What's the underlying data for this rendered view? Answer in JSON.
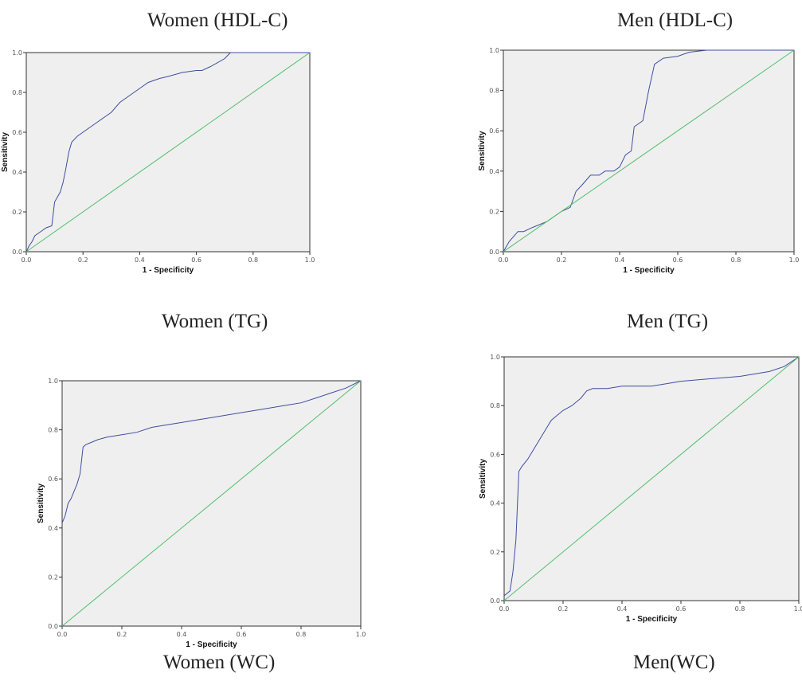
{
  "captions": {
    "c1": "Women (HDL-C)",
    "c2": "Men (HDL-C)",
    "c3": "Women (TG)",
    "c4": "Men (TG)",
    "c5": "Women (WC)",
    "c6": "Men(WC)"
  },
  "chart_data": [
    {
      "type": "line",
      "xlabel": "1 - Specificity",
      "ylabel": "Sensitivity",
      "xlim": [
        0,
        1
      ],
      "ylim": [
        0,
        1
      ],
      "ticks": [
        "0.0",
        "0.2",
        "0.4",
        "0.6",
        "0.8",
        "1.0"
      ],
      "series": [
        {
          "x": [
            0,
            0.01,
            0.02,
            0.03,
            0.05,
            0.07,
            0.09,
            0.1,
            0.12,
            0.13,
            0.14,
            0.15,
            0.16,
            0.18,
            0.2,
            0.22,
            0.25,
            0.28,
            0.3,
            0.33,
            0.36,
            0.4,
            0.43,
            0.47,
            0.5,
            0.55,
            0.6,
            0.62,
            0.65,
            0.7,
            0.72,
            0.8,
            0.9,
            1.0
          ],
          "y": [
            0,
            0.03,
            0.05,
            0.08,
            0.1,
            0.12,
            0.13,
            0.25,
            0.3,
            0.35,
            0.42,
            0.5,
            0.55,
            0.58,
            0.6,
            0.62,
            0.65,
            0.68,
            0.7,
            0.75,
            0.78,
            0.82,
            0.85,
            0.87,
            0.88,
            0.9,
            0.91,
            0.91,
            0.93,
            0.97,
            1.0,
            1.0,
            1.0,
            1.0
          ]
        },
        {
          "x": [
            0,
            1
          ],
          "y": [
            0,
            1
          ]
        }
      ]
    },
    {
      "type": "line",
      "xlabel": "1 - Specificity",
      "ylabel": "Sensitivity",
      "xlim": [
        0,
        1
      ],
      "ylim": [
        0,
        1
      ],
      "ticks": [
        "0.0",
        "0.2",
        "0.4",
        "0.6",
        "0.8",
        "1.0"
      ],
      "series": [
        {
          "x": [
            0,
            0.02,
            0.05,
            0.07,
            0.1,
            0.15,
            0.18,
            0.2,
            0.23,
            0.25,
            0.27,
            0.3,
            0.33,
            0.35,
            0.38,
            0.4,
            0.42,
            0.44,
            0.45,
            0.48,
            0.5,
            0.52,
            0.55,
            0.6,
            0.64,
            0.7,
            0.8,
            0.9,
            1.0
          ],
          "y": [
            0,
            0.05,
            0.1,
            0.1,
            0.12,
            0.15,
            0.18,
            0.2,
            0.22,
            0.3,
            0.33,
            0.38,
            0.38,
            0.4,
            0.4,
            0.42,
            0.48,
            0.5,
            0.62,
            0.65,
            0.8,
            0.93,
            0.96,
            0.97,
            0.99,
            1.0,
            1.0,
            1.0,
            1.0
          ]
        },
        {
          "x": [
            0,
            1
          ],
          "y": [
            0,
            1
          ]
        }
      ]
    },
    {
      "type": "line",
      "xlabel": "1 - Specificity",
      "ylabel": "Sensitivity",
      "xlim": [
        0,
        1
      ],
      "ylim": [
        0,
        1
      ],
      "ticks": [
        "0.0",
        "0.2",
        "0.4",
        "0.6",
        "0.8",
        "1.0"
      ],
      "series": [
        {
          "x": [
            0,
            0.01,
            0.02,
            0.03,
            0.05,
            0.06,
            0.07,
            0.08,
            0.1,
            0.12,
            0.15,
            0.2,
            0.25,
            0.3,
            0.35,
            0.4,
            0.45,
            0.5,
            0.55,
            0.6,
            0.65,
            0.7,
            0.75,
            0.8,
            0.85,
            0.9,
            0.95,
            1.0
          ],
          "y": [
            0.42,
            0.45,
            0.5,
            0.52,
            0.58,
            0.62,
            0.73,
            0.74,
            0.75,
            0.76,
            0.77,
            0.78,
            0.79,
            0.81,
            0.82,
            0.83,
            0.84,
            0.85,
            0.86,
            0.87,
            0.88,
            0.89,
            0.9,
            0.91,
            0.93,
            0.95,
            0.97,
            1.0
          ]
        },
        {
          "x": [
            0,
            1
          ],
          "y": [
            0,
            1
          ]
        }
      ]
    },
    {
      "type": "line",
      "xlabel": "1 - Specificity",
      "ylabel": "Sensitivity",
      "xlim": [
        0,
        1
      ],
      "ylim": [
        0,
        1
      ],
      "ticks": [
        "0.0",
        "0.2",
        "0.4",
        "0.6",
        "0.8",
        "1.0"
      ],
      "series": [
        {
          "x": [
            0,
            0.02,
            0.03,
            0.04,
            0.05,
            0.06,
            0.08,
            0.1,
            0.12,
            0.14,
            0.16,
            0.18,
            0.2,
            0.23,
            0.26,
            0.28,
            0.3,
            0.35,
            0.4,
            0.5,
            0.55,
            0.6,
            0.7,
            0.8,
            0.9,
            0.95,
            1.0
          ],
          "y": [
            0.02,
            0.04,
            0.12,
            0.25,
            0.53,
            0.55,
            0.58,
            0.62,
            0.66,
            0.7,
            0.74,
            0.76,
            0.78,
            0.8,
            0.83,
            0.86,
            0.87,
            0.87,
            0.88,
            0.88,
            0.89,
            0.9,
            0.91,
            0.92,
            0.94,
            0.96,
            1.0
          ]
        },
        {
          "x": [
            0,
            1
          ],
          "y": [
            0,
            1
          ]
        }
      ]
    }
  ]
}
